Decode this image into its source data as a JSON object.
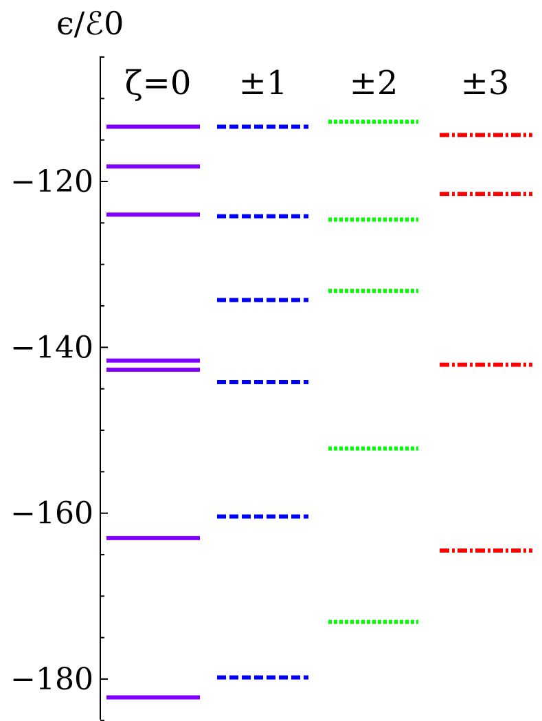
{
  "chart_data": {
    "type": "level-diagram",
    "ylabel": "ϵ/ℰ0",
    "ylim": [
      -185.5,
      -105
    ],
    "yticks": [
      -120,
      -140,
      -160,
      -180
    ],
    "ytick_labels": [
      "−120",
      "−140",
      "−160",
      "−180"
    ],
    "minor_tick_step": 5,
    "series": [
      {
        "name": "ζ=0",
        "color": "#8000ff",
        "style": "solid",
        "values": [
          -113.4,
          -118.2,
          -124.0,
          -141.6,
          -142.7,
          -163.0,
          -182.2
        ]
      },
      {
        "name": "±1",
        "color": "#0000ff",
        "style": "dashed",
        "values": [
          -113.4,
          -124.2,
          -134.3,
          -144.2,
          -160.4,
          -179.8
        ]
      },
      {
        "name": "±2",
        "color": "#00ff00",
        "style": "dotted",
        "values": [
          -112.8,
          -124.6,
          -133.2,
          -152.2,
          -173.1
        ]
      },
      {
        "name": "±3",
        "color": "#ff0000",
        "style": "dashdot",
        "values": [
          -114.4,
          -121.5,
          -142.1,
          -164.5
        ]
      }
    ]
  }
}
